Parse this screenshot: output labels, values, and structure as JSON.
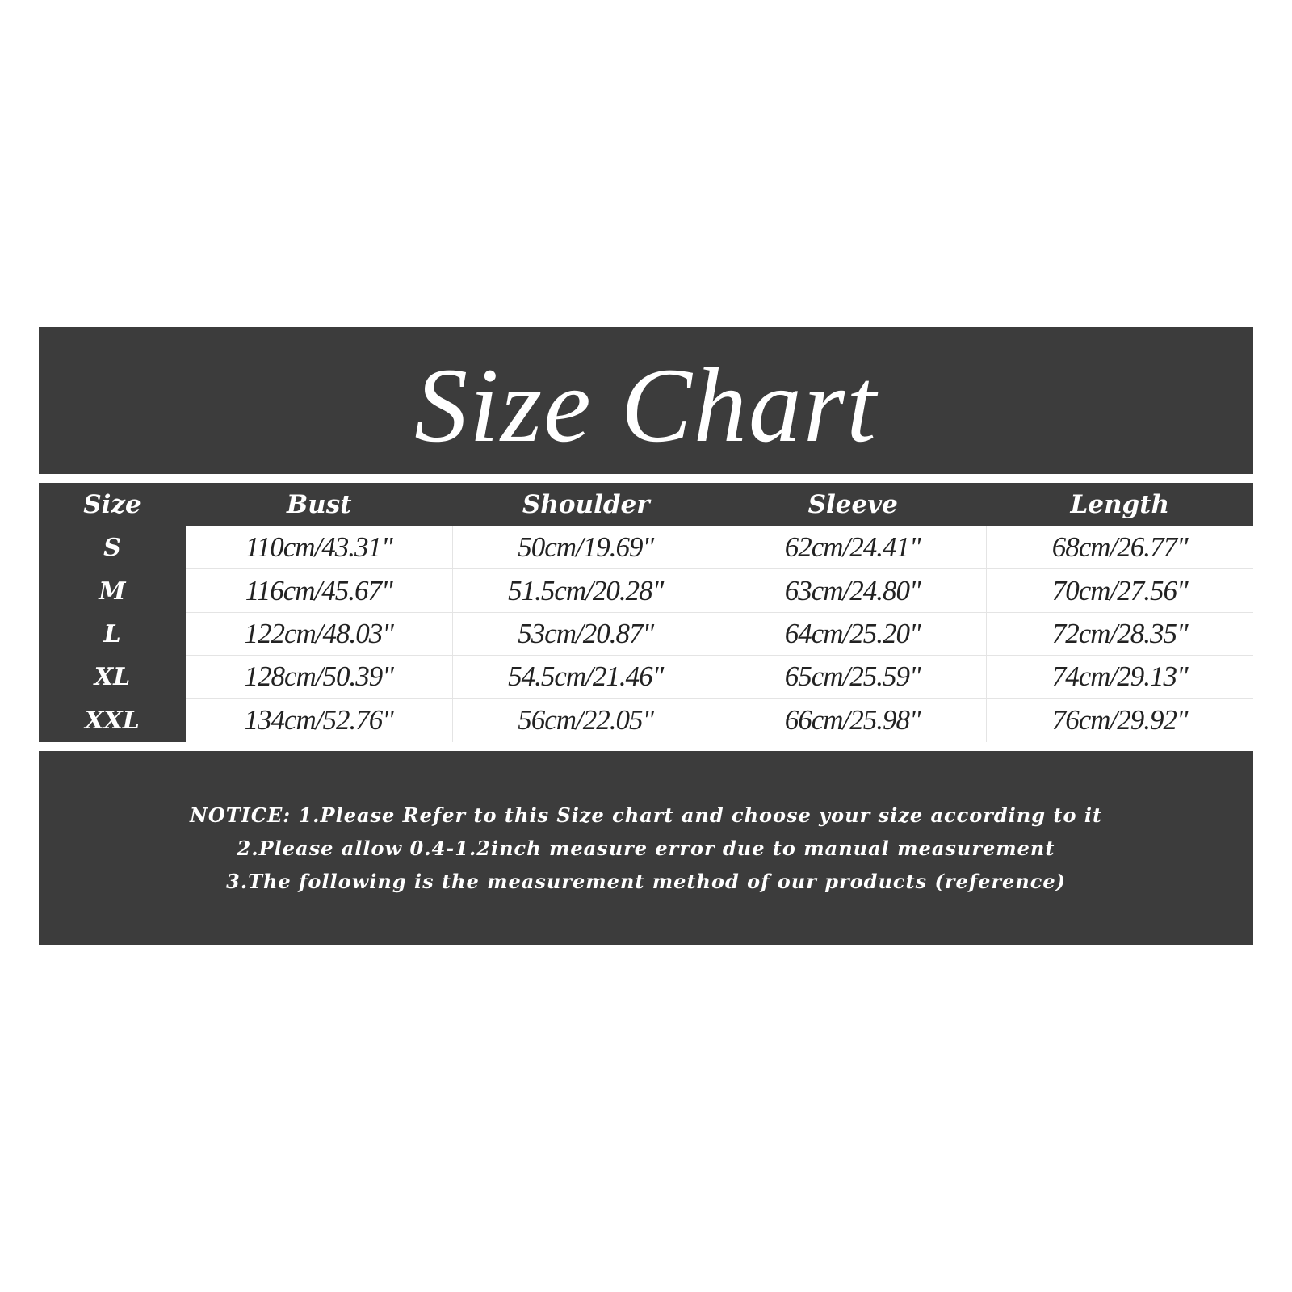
{
  "title": "Size Chart",
  "table": {
    "headers": [
      "Size",
      "Bust",
      "Shoulder",
      "Sleeve",
      "Length"
    ],
    "rows": [
      [
        "S",
        "110cm/43.31\"",
        "50cm/19.69\"",
        "62cm/24.41\"",
        "68cm/26.77\""
      ],
      [
        "M",
        "116cm/45.67\"",
        "51.5cm/20.28\"",
        "63cm/24.80\"",
        "70cm/27.56\""
      ],
      [
        "L",
        "122cm/48.03\"",
        "53cm/20.87\"",
        "64cm/25.20\"",
        "72cm/28.35\""
      ],
      [
        "XL",
        "128cm/50.39\"",
        "54.5cm/21.46\"",
        "65cm/25.59\"",
        "74cm/29.13\""
      ],
      [
        "XXL",
        "134cm/52.76\"",
        "56cm/22.05\"",
        "66cm/25.98\"",
        "76cm/29.92\""
      ]
    ]
  },
  "notice": [
    "NOTICE: 1.Please Refer to this Size chart and choose your size according to it",
    "2.Please allow 0.4-1.2inch measure error due to manual measurement",
    "3.The following is the measurement method of our products (reference)"
  ],
  "colors": {
    "band": "#3c3c3c",
    "text_light": "#ffffff",
    "text_dark": "#222222"
  }
}
